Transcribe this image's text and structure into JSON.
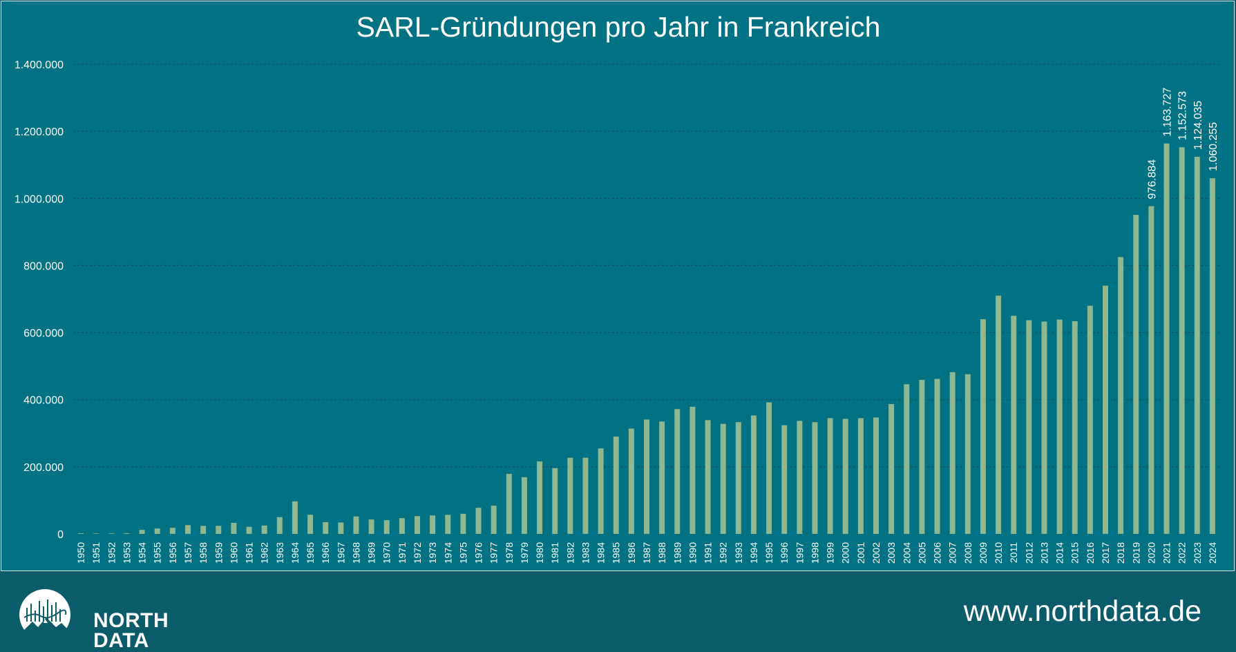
{
  "chart_data": {
    "type": "bar",
    "title": "SARL-Gründungen pro Jahr in Frankreich",
    "xlabel": "",
    "ylabel": "",
    "ylim": [
      0,
      1400000
    ],
    "yticks": [
      0,
      200000,
      400000,
      600000,
      800000,
      1000000,
      1200000,
      1400000
    ],
    "ytick_labels": [
      "0",
      "200.000",
      "400.000",
      "600.000",
      "800.000",
      "1.000.000",
      "1.200.000",
      "1.400.000"
    ],
    "grid": true,
    "categories": [
      "1950",
      "1951",
      "1952",
      "1953",
      "1954",
      "1955",
      "1956",
      "1957",
      "1958",
      "1959",
      "1960",
      "1961",
      "1962",
      "1963",
      "1964",
      "1965",
      "1966",
      "1967",
      "1968",
      "1969",
      "1970",
      "1971",
      "1972",
      "1973",
      "1974",
      "1975",
      "1976",
      "1977",
      "1978",
      "1979",
      "1980",
      "1981",
      "1982",
      "1983",
      "1984",
      "1985",
      "1986",
      "1987",
      "1988",
      "1989",
      "1990",
      "1991",
      "1992",
      "1993",
      "1994",
      "1995",
      "1996",
      "1997",
      "1998",
      "1999",
      "2000",
      "2001",
      "2002",
      "2003",
      "2004",
      "2005",
      "2006",
      "2007",
      "2008",
      "2009",
      "2010",
      "2011",
      "2012",
      "2013",
      "2014",
      "2015",
      "2016",
      "2017",
      "2018",
      "2019",
      "2020",
      "2021",
      "2022",
      "2023",
      "2024"
    ],
    "values": [
      2000,
      1500,
      1500,
      2000,
      12000,
      16000,
      18000,
      26000,
      24000,
      24000,
      33000,
      21000,
      25000,
      50000,
      97000,
      57000,
      35000,
      34000,
      52000,
      43000,
      41000,
      47000,
      53000,
      55000,
      57000,
      60000,
      78000,
      84000,
      179000,
      169000,
      216000,
      196000,
      227000,
      227000,
      255000,
      290000,
      314000,
      341000,
      335000,
      372000,
      379000,
      339000,
      328000,
      333000,
      353000,
      392000,
      324000,
      337000,
      333000,
      345000,
      343000,
      345000,
      347000,
      387000,
      446000,
      459000,
      462000,
      482000,
      476000,
      640000,
      710000,
      650000,
      637000,
      633000,
      639000,
      634000,
      680000,
      740000,
      825000,
      951000,
      976884,
      1163727,
      1152573,
      1124035,
      1060255
    ],
    "data_labels": {
      "2020": "976.884",
      "2021": "1.163.727",
      "2022": "1.152.573",
      "2023": "1.124.035",
      "2024": "1.060.255"
    },
    "colors": {
      "background": "#007284",
      "bar": "#8fb891",
      "grid": "#0b4f5e",
      "text": "#ffffff",
      "footer": "#0a5c6b"
    }
  },
  "footer": {
    "logo_line1": "NORTH",
    "logo_line2": "DATA",
    "website": "www.northdata.de"
  }
}
